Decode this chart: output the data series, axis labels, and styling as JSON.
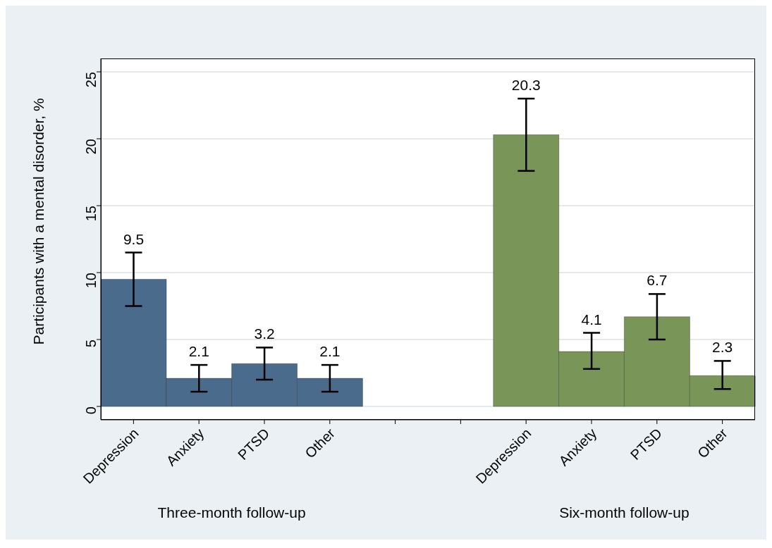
{
  "chart_data": {
    "type": "bar",
    "ylabel": "Participants with a mental disorder, %",
    "categories": [
      "Depression",
      "Anxiety",
      "PTSD",
      "Other",
      null,
      null,
      "Depression",
      "Anxiety",
      "PTSD",
      "Other"
    ],
    "values": [
      9.5,
      2.1,
      3.2,
      2.1,
      null,
      null,
      20.3,
      4.1,
      6.7,
      2.3
    ],
    "colors": [
      "#4a6b8c",
      "#4a6b8c",
      "#4a6b8c",
      "#4a6b8c",
      null,
      null,
      "#7a9558",
      "#7a9558",
      "#7a9558",
      "#7a9558"
    ],
    "errors": [
      [
        7.5,
        11.5
      ],
      [
        1.1,
        3.1
      ],
      [
        2.0,
        4.4
      ],
      [
        1.1,
        3.1
      ],
      null,
      null,
      [
        17.6,
        23.0
      ],
      [
        2.8,
        5.5
      ],
      [
        5.0,
        8.4
      ],
      [
        1.3,
        3.4
      ]
    ],
    "data_labels": true,
    "ylim": [
      -1,
      26
    ],
    "yticks": [
      0,
      5,
      10,
      15,
      20,
      25
    ],
    "grid": "y",
    "annotations": [
      "Three-month follow-up",
      "Six-month follow-up"
    ]
  }
}
